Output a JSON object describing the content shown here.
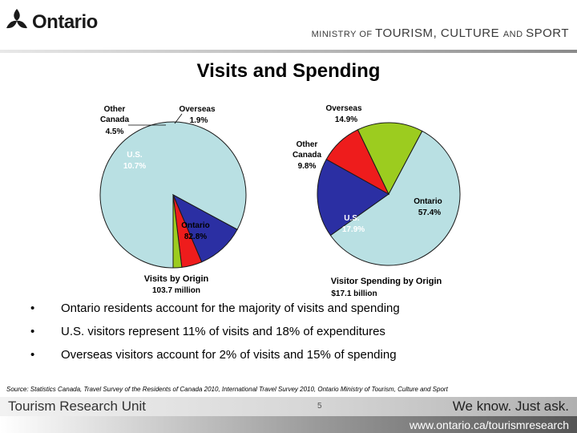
{
  "header": {
    "brand": "Ontario",
    "ministry": {
      "p1": "MINISTRY ",
      "p2": "OF ",
      "p3": "TOURISM",
      "p4": ", ",
      "p5": "CULTURE ",
      "p6": "AND ",
      "p7": "SPORT"
    }
  },
  "title": "Visits and Spending",
  "colors": {
    "ontario": "#b9e0e3",
    "us": "#2b2fa3",
    "other_canada": "#ee1c1c",
    "overseas": "#9ccc1f",
    "slice_outline": "#1a1a1a"
  },
  "chart_data": [
    {
      "type": "pie",
      "title": "Visits by Origin",
      "subtitle": "103.7 million",
      "slices": [
        {
          "key": "ontario",
          "label": "Ontario",
          "value": 82.8,
          "value_label": "82.8%"
        },
        {
          "key": "us",
          "label": "U.S.",
          "value": 10.7,
          "value_label": "10.7%"
        },
        {
          "key": "other_canada",
          "label": "Other Canada",
          "value": 4.5,
          "value_label": "4.5%"
        },
        {
          "key": "overseas",
          "label": "Overseas",
          "value": 1.9,
          "value_label": "1.9%"
        }
      ]
    },
    {
      "type": "pie",
      "title": "Visitor Spending by Origin",
      "subtitle": "$17.1 billion",
      "slices": [
        {
          "key": "ontario",
          "label": "Ontario",
          "value": 57.4,
          "value_label": "57.4%"
        },
        {
          "key": "us",
          "label": "U.S.",
          "value": 17.9,
          "value_label": "17.9%"
        },
        {
          "key": "other_canada",
          "label": "Other Canada",
          "value": 9.8,
          "value_label": "9.8%"
        },
        {
          "key": "overseas",
          "label": "Overseas",
          "value": 14.9,
          "value_label": "14.9%"
        }
      ]
    }
  ],
  "bullets": [
    "Ontario residents account for the majority of visits and spending",
    "U.S. visitors represent 11% of visits and 18% of expenditures",
    "Overseas visitors account for 2% of visits and 15% of spending"
  ],
  "bullet_symbol": "•",
  "source": "Source: Statistics Canada, Travel Survey of the Residents of Canada 2010, International Travel Survey 2010, Ontario Ministry of Tourism, Culture and Sport",
  "footer": {
    "unit": "Tourism Research Unit",
    "page": "5",
    "tagline": "We know. Just ask.",
    "url": "www.ontario.ca/tourismresearch"
  }
}
